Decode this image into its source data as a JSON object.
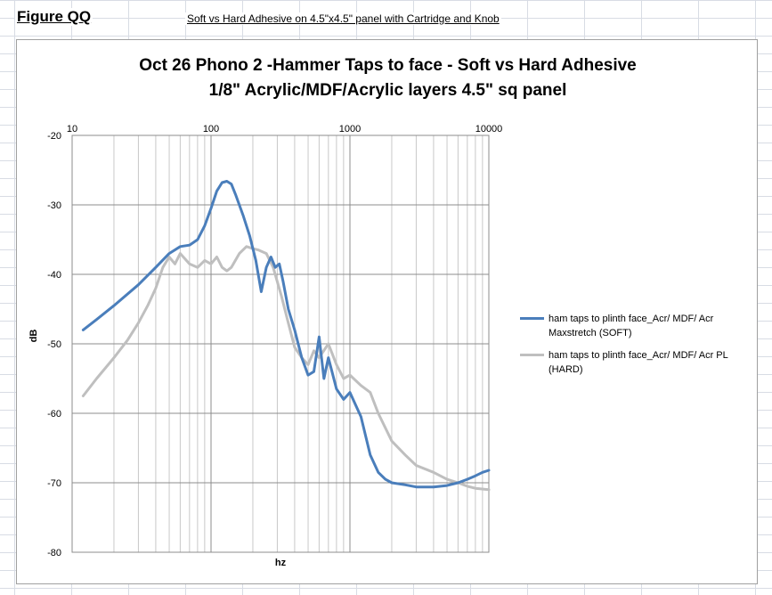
{
  "sheet": {
    "figure_label": "Figure QQ",
    "caption": "Soft vs Hard Adhesive on 4.5\"x4.5\" panel with Cartridge and Knob"
  },
  "chart_data": {
    "type": "line",
    "title_line1": "Oct 26  Phono 2 -Hammer Taps to face - Soft vs Hard Adhesive",
    "title_line2": "1/8\" Acrylic/MDF/Acrylic layers 4.5\" sq panel",
    "xlabel": "hz",
    "ylabel": "dB",
    "x_scale": "log",
    "xlim": [
      10,
      10000
    ],
    "ylim": [
      -80,
      -20
    ],
    "x_ticks": [
      "10",
      "100",
      "1000",
      "10000"
    ],
    "y_ticks": [
      "-20",
      "-30",
      "-40",
      "-50",
      "-60",
      "-70",
      "-80"
    ],
    "x_axis_position": "top",
    "grid": true,
    "legend_position": "right",
    "series": [
      {
        "name": "ham taps to plinth face_Acr/ MDF/ Acr Maxstretch (SOFT)",
        "color": "#4a7ebb",
        "x": [
          12,
          15,
          20,
          30,
          40,
          50,
          60,
          70,
          80,
          90,
          100,
          110,
          120,
          130,
          140,
          150,
          170,
          190,
          210,
          230,
          250,
          270,
          290,
          310,
          330,
          360,
          400,
          450,
          500,
          550,
          600,
          650,
          700,
          800,
          900,
          1000,
          1200,
          1400,
          1600,
          1800,
          2000,
          2500,
          3000,
          4000,
          5000,
          6000,
          7000,
          8000,
          9000,
          10000
        ],
        "y": [
          -48,
          -46.5,
          -44.5,
          -41.5,
          -39,
          -37,
          -36,
          -35.8,
          -35,
          -33,
          -30.5,
          -28,
          -26.8,
          -26.6,
          -27,
          -28.5,
          -31.5,
          -34.5,
          -38,
          -42.5,
          -39,
          -37.5,
          -39,
          -38.5,
          -41,
          -45,
          -48,
          -52,
          -54.5,
          -54,
          -49,
          -55,
          -52,
          -56.5,
          -58,
          -57,
          -60.5,
          -66,
          -68.5,
          -69.5,
          -70,
          -70.3,
          -70.6,
          -70.6,
          -70.4,
          -70,
          -69.5,
          -69,
          -68.5,
          -68.2
        ]
      },
      {
        "name": "ham taps to plinth face_Acr/ MDF/ Acr PL (HARD)",
        "color": "#bfbfbf",
        "x": [
          12,
          15,
          20,
          25,
          30,
          35,
          40,
          45,
          50,
          55,
          60,
          70,
          80,
          90,
          100,
          110,
          120,
          130,
          140,
          160,
          180,
          200,
          220,
          250,
          280,
          320,
          360,
          400,
          450,
          500,
          550,
          600,
          700,
          800,
          900,
          1000,
          1200,
          1400,
          1600,
          2000,
          2500,
          3000,
          4000,
          5000,
          6000,
          7000,
          8000,
          10000
        ],
        "y": [
          -57.5,
          -55,
          -52,
          -49.5,
          -47,
          -44.5,
          -42,
          -39,
          -37.5,
          -38.5,
          -37,
          -38.5,
          -39,
          -38,
          -38.5,
          -37.5,
          -39,
          -39.5,
          -39,
          -37,
          -36,
          -36.3,
          -36.5,
          -37,
          -39,
          -43,
          -47,
          -50.5,
          -52,
          -53,
          -51,
          -52,
          -50,
          -53,
          -55,
          -54.5,
          -56,
          -57,
          -60,
          -64,
          -66,
          -67.5,
          -68.5,
          -69.5,
          -70,
          -70.5,
          -70.8,
          -71
        ]
      }
    ]
  }
}
